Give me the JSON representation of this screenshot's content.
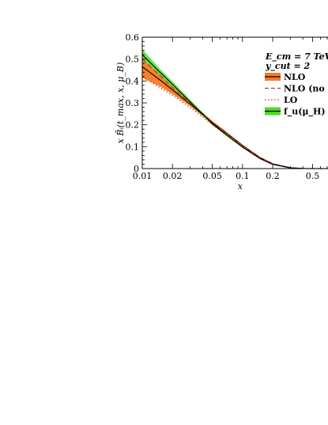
{
  "chart_data": {
    "type": "line",
    "xlabel": "x",
    "ylabel": "x B̃ᵢ(t_max, x, μ_B)",
    "x_scale": "log",
    "xlim": [
      0.01,
      0.7
    ],
    "ylim": [
      0,
      0.6
    ],
    "x_ticks": [
      {
        "value": 0.01,
        "label": "0.01"
      },
      {
        "value": 0.02,
        "label": "0.02"
      },
      {
        "value": 0.05,
        "label": "0.05"
      },
      {
        "value": 0.1,
        "label": "0.1"
      },
      {
        "value": 0.2,
        "label": "0.2"
      },
      {
        "value": 0.5,
        "label": "0.5"
      }
    ],
    "y_ticks": [
      {
        "value": 0,
        "label": "0"
      },
      {
        "value": 0.1,
        "label": "0.1"
      },
      {
        "value": 0.2,
        "label": "0.2"
      },
      {
        "value": 0.3,
        "label": "0.3"
      },
      {
        "value": 0.4,
        "label": "0.4"
      },
      {
        "value": 0.5,
        "label": "0.5"
      },
      {
        "value": 0.6,
        "label": "0.6"
      }
    ],
    "annotations": [
      "E_cm = 7 TeV",
      "y_cut = 2"
    ],
    "legend_position": "top-right",
    "x": [
      0.01,
      0.015,
      0.02,
      0.03,
      0.05,
      0.07,
      0.1,
      0.15,
      0.2,
      0.3,
      0.4,
      0.5,
      0.7
    ],
    "series": [
      {
        "name": "NLO",
        "style": "band",
        "color": "#f47b20",
        "line_color": "#000000",
        "values": [
          0.465,
          0.405,
          0.36,
          0.295,
          0.21,
          0.16,
          0.105,
          0.05,
          0.022,
          0.004,
          0.0005,
          0.0,
          0.0
        ],
        "lower": [
          0.415,
          0.375,
          0.34,
          0.285,
          0.205,
          0.155,
          0.102,
          0.048,
          0.021,
          0.0035,
          0.0005,
          0.0,
          0.0
        ],
        "upper": [
          0.5,
          0.43,
          0.375,
          0.305,
          0.218,
          0.166,
          0.11,
          0.053,
          0.024,
          0.0045,
          0.0006,
          0.0,
          0.0
        ]
      },
      {
        "name": "NLO (no g",
        "style": "dashed",
        "color": "#d62728",
        "values": [
          0.5,
          0.425,
          0.37,
          0.3,
          0.212,
          0.162,
          0.107,
          0.051,
          0.022,
          0.004,
          0.0005,
          0.0,
          0.0
        ]
      },
      {
        "name": "LO",
        "style": "dotted",
        "color": "#d62728",
        "values": [
          0.42,
          0.37,
          0.335,
          0.28,
          0.2,
          0.152,
          0.1,
          0.046,
          0.02,
          0.0035,
          0.0004,
          0.0,
          0.0
        ]
      },
      {
        "name": "f_u(μ_H)",
        "style": "band",
        "color": "#4ddc28",
        "line_color": "#000000",
        "values": [
          0.52,
          0.44,
          0.385,
          0.305,
          0.205,
          0.152,
          0.098,
          0.045,
          0.019,
          0.003,
          0.0004,
          0.0,
          0.0
        ],
        "lower": [
          0.5,
          0.425,
          0.372,
          0.296,
          0.199,
          0.147,
          0.095,
          0.043,
          0.018,
          0.0028,
          0.0003,
          0.0,
          0.0
        ],
        "upper": [
          0.545,
          0.455,
          0.398,
          0.315,
          0.211,
          0.157,
          0.101,
          0.047,
          0.02,
          0.0032,
          0.0005,
          0.0,
          0.0
        ]
      }
    ]
  }
}
